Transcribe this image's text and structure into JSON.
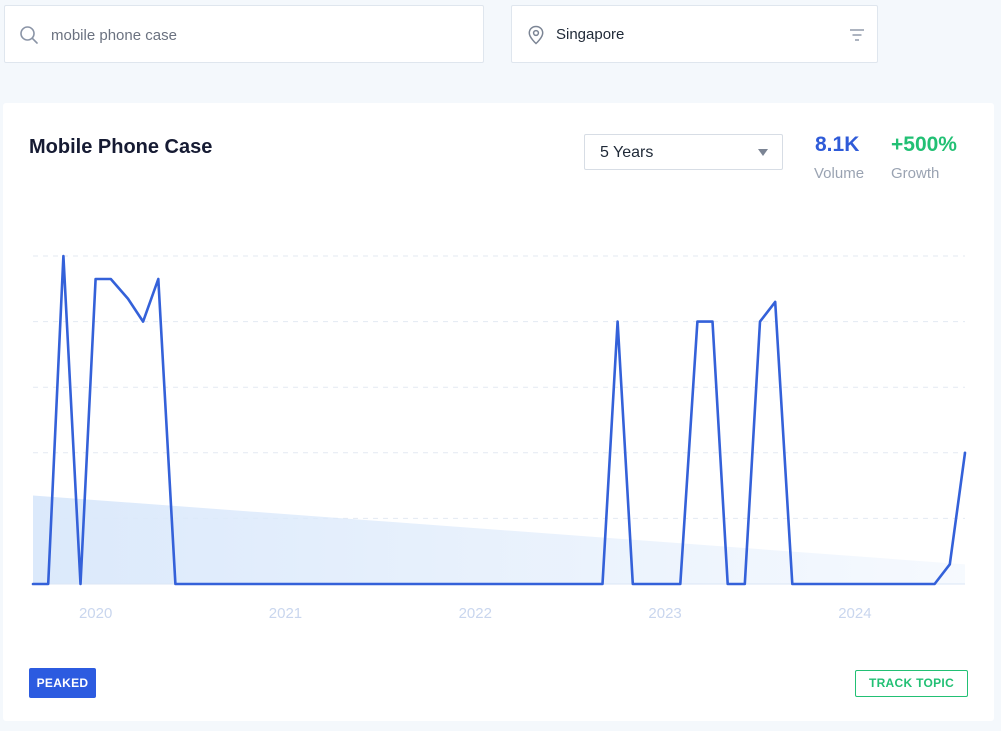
{
  "search": {
    "value": "mobile phone case",
    "icon": "search-icon"
  },
  "location": {
    "value": "Singapore",
    "pin_icon": "location-pin-icon",
    "filter_icon": "filter-icon"
  },
  "card": {
    "title": "Mobile Phone Case",
    "range_select": "5 Years",
    "volume": {
      "value": "8.1K",
      "label": "Volume"
    },
    "growth": {
      "value": "+500%",
      "label": "Growth"
    },
    "status_badge": "PEAKED",
    "track_button": "TRACK TOPIC"
  },
  "colors": {
    "line": "#3461d9",
    "trend_fill": "#dbe9fb",
    "volume": "#2f5bd8",
    "growth": "#22c074",
    "axis_tick": "#c9d6ee"
  },
  "chart_data": {
    "type": "line",
    "x_ticks": [
      "2020",
      "2021",
      "2022",
      "2023",
      "2024"
    ],
    "x_range": [
      2019.67,
      2024.58
    ],
    "ylim": [
      0,
      100
    ],
    "grid": "horizontal dashed",
    "series": [
      {
        "values": [
          [
            2019.67,
            0
          ],
          [
            2019.75,
            0
          ],
          [
            2019.83,
            100
          ],
          [
            2019.92,
            0
          ],
          [
            2020.0,
            93
          ],
          [
            2020.08,
            93
          ],
          [
            2020.17,
            87
          ],
          [
            2020.25,
            80
          ],
          [
            2020.33,
            93
          ],
          [
            2020.42,
            0
          ],
          [
            2020.5,
            0
          ],
          [
            2020.58,
            0
          ],
          [
            2020.67,
            0
          ],
          [
            2020.75,
            0
          ],
          [
            2020.83,
            0
          ],
          [
            2020.92,
            0
          ],
          [
            2021.0,
            0
          ],
          [
            2021.08,
            0
          ],
          [
            2021.17,
            0
          ],
          [
            2021.25,
            0
          ],
          [
            2021.33,
            0
          ],
          [
            2021.42,
            0
          ],
          [
            2021.5,
            0
          ],
          [
            2021.58,
            0
          ],
          [
            2021.67,
            0
          ],
          [
            2021.75,
            0
          ],
          [
            2021.83,
            0
          ],
          [
            2021.92,
            0
          ],
          [
            2022.0,
            0
          ],
          [
            2022.08,
            0
          ],
          [
            2022.17,
            0
          ],
          [
            2022.25,
            0
          ],
          [
            2022.33,
            0
          ],
          [
            2022.42,
            0
          ],
          [
            2022.5,
            0
          ],
          [
            2022.58,
            0
          ],
          [
            2022.67,
            0
          ],
          [
            2022.75,
            80
          ],
          [
            2022.83,
            0
          ],
          [
            2022.92,
            0
          ],
          [
            2023.0,
            0
          ],
          [
            2023.08,
            0
          ],
          [
            2023.17,
            80
          ],
          [
            2023.25,
            80
          ],
          [
            2023.33,
            0
          ],
          [
            2023.42,
            0
          ],
          [
            2023.5,
            80
          ],
          [
            2023.58,
            86
          ],
          [
            2023.67,
            0
          ],
          [
            2023.75,
            0
          ],
          [
            2023.83,
            0
          ],
          [
            2023.92,
            0
          ],
          [
            2024.0,
            0
          ],
          [
            2024.08,
            0
          ],
          [
            2024.17,
            0
          ],
          [
            2024.25,
            0
          ],
          [
            2024.33,
            0
          ],
          [
            2024.42,
            0
          ],
          [
            2024.5,
            6
          ],
          [
            2024.58,
            40
          ]
        ]
      }
    ],
    "trend": {
      "start": 27,
      "end": 6,
      "style": "area"
    }
  }
}
